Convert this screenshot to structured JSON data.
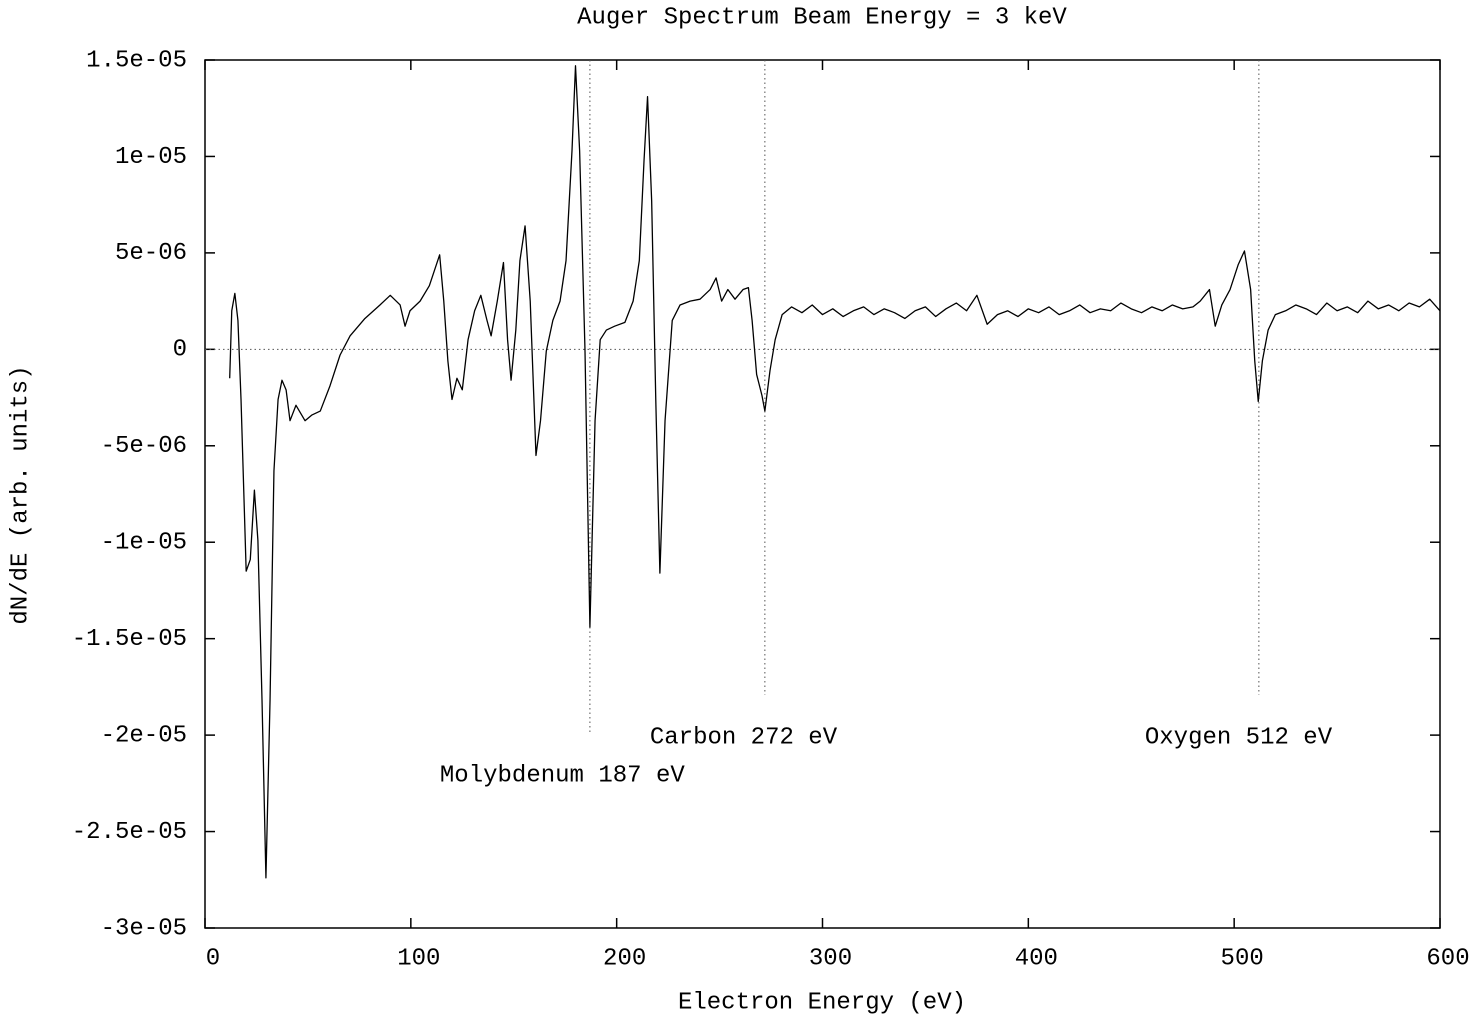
{
  "chart_data": {
    "type": "line",
    "title": "Auger Spectrum Beam Energy = 3 keV",
    "x_label": "Electron Energy (eV)",
    "y_label": "dN/dE (arb. units)",
    "xlim": [
      0,
      600
    ],
    "ylim": [
      -3e-05,
      1.5e-05
    ],
    "xticks": [
      0,
      100,
      200,
      300,
      400,
      500,
      600
    ],
    "yticks": [
      {
        "value": -3e-05,
        "label": "-3e-05"
      },
      {
        "value": -2.5e-05,
        "label": "-2.5e-05"
      },
      {
        "value": -2e-05,
        "label": "-2e-05"
      },
      {
        "value": -1.5e-05,
        "label": "-1.5e-05"
      },
      {
        "value": -1e-05,
        "label": "-1e-05"
      },
      {
        "value": -5e-06,
        "label": "-5e-06"
      },
      0,
      {
        "value": 5e-06,
        "label": "5e-06"
      },
      {
        "value": 1e-05,
        "label": "1e-05"
      },
      {
        "value": 1.5e-05,
        "label": "1.5e-05"
      }
    ],
    "zero_axis": true,
    "color": "#000000",
    "annotations": [
      {
        "x": 187,
        "text": "Molybdenum 187 eV"
      },
      {
        "x": 272,
        "text": "Carbon 272 eV"
      },
      {
        "x": 512,
        "text": "Oxygen 512 eV"
      }
    ],
    "x": [
      12,
      13,
      14.5,
      16,
      17.5,
      20,
      22,
      24,
      25.7,
      27.7,
      29.6,
      31.6,
      33.5,
      35.5,
      37.4,
      39.4,
      41.3,
      44.2,
      48.6,
      52,
      56,
      60.7,
      65.6,
      70.5,
      77.7,
      85,
      90,
      94.8,
      97.2,
      99.6,
      104.5,
      109,
      114,
      116,
      118,
      120,
      122.4,
      125,
      127.8,
      131,
      134,
      137,
      139,
      142,
      145,
      147,
      148.7,
      151,
      153,
      155.5,
      158,
      160.8,
      163,
      165.8,
      169,
      172.5,
      175.4,
      178.3,
      180,
      182,
      184.6,
      187,
      189.5,
      192,
      195,
      199,
      204,
      208,
      211,
      213.3,
      215,
      217,
      219,
      221,
      223.5,
      227,
      230.8,
      235.7,
      240.5,
      245.4,
      248.3,
      251,
      254,
      257.5,
      261.4,
      264,
      265.8,
      268,
      270.6,
      272,
      274.5,
      277,
      280.4,
      285,
      290,
      295,
      300,
      305,
      310,
      315,
      320,
      325,
      330,
      335,
      340,
      345,
      350,
      355,
      360,
      365,
      370,
      375,
      380,
      385,
      390,
      395,
      400,
      405,
      410,
      415,
      420,
      425,
      430,
      435,
      440,
      445,
      450,
      455,
      460,
      465,
      470,
      475,
      480,
      483.5,
      488,
      490.8,
      494,
      498,
      502,
      505,
      508,
      510,
      511.7,
      513.7,
      516.5,
      520,
      525,
      530,
      535,
      540,
      545,
      550,
      555,
      560,
      565,
      570,
      575,
      580,
      585,
      590,
      595,
      600
    ],
    "values": [
      -1.5e-06,
      2e-06,
      2.9e-06,
      1.5e-06,
      -2.6e-06,
      -1.15e-05,
      -1.09e-05,
      -7.3e-06,
      -9.9e-06,
      -1.82e-05,
      -2.74e-05,
      -1.82e-05,
      -6.3e-06,
      -2.6e-06,
      -1.6e-06,
      -2.1e-06,
      -3.7e-06,
      -2.9e-06,
      -3.7e-06,
      -3.4e-06,
      -3.2e-06,
      -1.9e-06,
      -3e-07,
      7e-07,
      1.6e-06,
      2.3e-06,
      2.8e-06,
      2.3e-06,
      1.2e-06,
      2e-06,
      2.5e-06,
      3.3e-06,
      4.9e-06,
      2.5e-06,
      -6e-07,
      -2.6e-06,
      -1.5e-06,
      -2.1e-06,
      5e-07,
      2e-06,
      2.8e-06,
      1.5e-06,
      7e-07,
      2.5e-06,
      4.5e-06,
      5e-07,
      -1.6e-06,
      1e-06,
      4.6e-06,
      6.4e-06,
      2.5e-06,
      -5.5e-06,
      -3.7e-06,
      -1e-07,
      1.5e-06,
      2.5e-06,
      4.6e-06,
      1.03e-05,
      1.47e-05,
      1.03e-05,
      0,
      -1.44e-05,
      -3.7e-06,
      5e-07,
      1e-06,
      1.2e-06,
      1.4e-06,
      2.5e-06,
      4.6e-06,
      9.8e-06,
      1.31e-05,
      7.7e-06,
      -2.6e-06,
      -1.16e-05,
      -3.7e-06,
      1.5e-06,
      2.3e-06,
      2.5e-06,
      2.6e-06,
      3.1e-06,
      3.7e-06,
      2.5e-06,
      3.1e-06,
      2.6e-06,
      3.1e-06,
      3.2e-06,
      1.5e-06,
      -1.3e-06,
      -2.4e-06,
      -3.2e-06,
      -1.1e-06,
      5e-07,
      1.8e-06,
      2.2e-06,
      1.9e-06,
      2.3e-06,
      1.8e-06,
      2.1e-06,
      1.7e-06,
      2e-06,
      2.2e-06,
      1.8e-06,
      2.1e-06,
      1.9e-06,
      1.6e-06,
      2e-06,
      2.2e-06,
      1.7e-06,
      2.1e-06,
      2.4e-06,
      2e-06,
      2.8e-06,
      1.3e-06,
      1.8e-06,
      2e-06,
      1.7e-06,
      2.1e-06,
      1.9e-06,
      2.2e-06,
      1.8e-06,
      2e-06,
      2.3e-06,
      1.9e-06,
      2.1e-06,
      2e-06,
      2.4e-06,
      2.1e-06,
      1.9e-06,
      2.2e-06,
      2e-06,
      2.3e-06,
      2.1e-06,
      2.2e-06,
      2.5e-06,
      3.1e-06,
      1.2e-06,
      2.3e-06,
      3.1e-06,
      4.4e-06,
      5.1e-06,
      3.1e-06,
      -6e-07,
      -2.7e-06,
      -6e-07,
      1e-06,
      1.8e-06,
      2e-06,
      2.3e-06,
      2.1e-06,
      1.8e-06,
      2.4e-06,
      2e-06,
      2.2e-06,
      1.9e-06,
      2.5e-06,
      2.1e-06,
      2.3e-06,
      2e-06,
      2.4e-06,
      2.2e-06,
      2.6e-06,
      2e-06
    ]
  }
}
